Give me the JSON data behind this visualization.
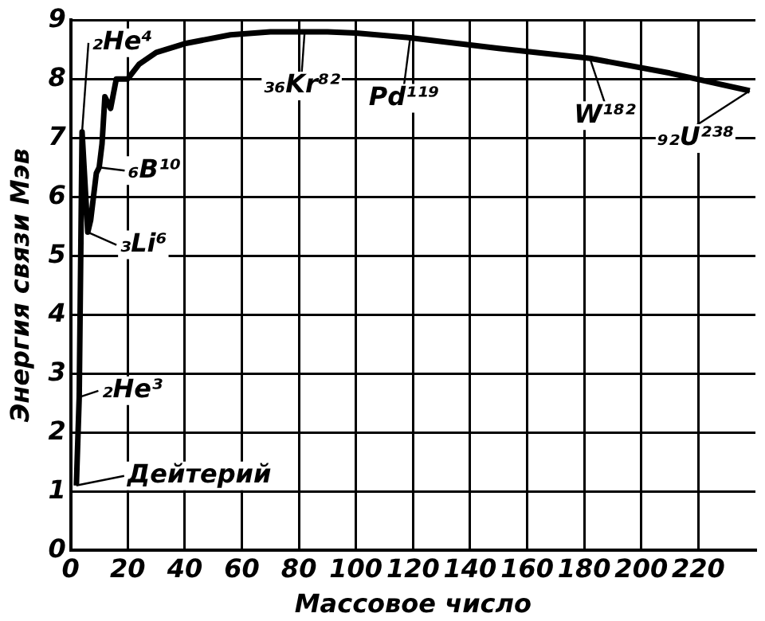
{
  "chart_data": {
    "type": "line",
    "xlabel": "Массовое число",
    "ylabel": "Энергия связи Мэв",
    "x": [
      2,
      3,
      4,
      6,
      7,
      9,
      10,
      11,
      12,
      14,
      16,
      20,
      24,
      30,
      40,
      56,
      70,
      90,
      100,
      119,
      150,
      182,
      210,
      238
    ],
    "series": [
      {
        "color": "#000000",
        "values": [
          1.1,
          2.6,
          7.1,
          5.4,
          5.6,
          6.4,
          6.5,
          6.9,
          7.7,
          7.5,
          8.0,
          8.0,
          8.25,
          8.45,
          8.6,
          8.75,
          8.8,
          8.8,
          8.78,
          8.7,
          8.52,
          8.35,
          8.1,
          7.8
        ]
      }
    ],
    "xlim": [
      0,
      240
    ],
    "xticks": [
      0,
      20,
      40,
      60,
      80,
      100,
      120,
      140,
      160,
      180,
      200,
      220
    ],
    "ylim": [
      0,
      9
    ],
    "yticks": [
      0,
      1,
      2,
      3,
      4,
      5,
      6,
      7,
      8,
      9
    ],
    "grid": true,
    "legend": false,
    "marker": "none",
    "line_style": "solid",
    "annotations": [
      {
        "text": "₂He⁴",
        "x": 4,
        "y": 7.1
      },
      {
        "text": "₂He³",
        "x": 3,
        "y": 2.6
      },
      {
        "text": "Дейтерий",
        "x": 2,
        "y": 1.1
      },
      {
        "text": "₃Li⁶",
        "x": 6,
        "y": 5.4
      },
      {
        "text": "₆B¹⁰",
        "x": 10,
        "y": 6.5
      },
      {
        "text": "₃₆Kr⁸²",
        "x": 82,
        "y": 8.8
      },
      {
        "text": "Pd¹¹⁹",
        "x": 119,
        "y": 8.7
      },
      {
        "text": "W¹⁸²",
        "x": 182,
        "y": 8.35
      },
      {
        "text": "₉₂U²³⁸",
        "x": 238,
        "y": 7.8
      }
    ]
  }
}
